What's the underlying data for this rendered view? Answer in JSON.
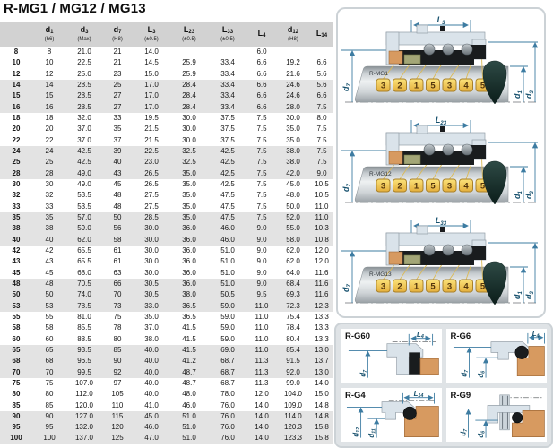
{
  "title": "R-MG1 / MG12 / MG13",
  "table": {
    "headers": [
      {
        "base": "",
        "sub": "",
        "tol": ""
      },
      {
        "base": "d",
        "sub": "1",
        "tol": "(h6)"
      },
      {
        "base": "d",
        "sub": "3",
        "tol": "(Max)"
      },
      {
        "base": "d",
        "sub": "7",
        "tol": "(H8)"
      },
      {
        "base": "L",
        "sub": "3",
        "tol": "(±0.5)"
      },
      {
        "base": "L",
        "sub": "23",
        "tol": "(±0.5)"
      },
      {
        "base": "L",
        "sub": "33",
        "tol": "(±0.5)"
      },
      {
        "base": "L",
        "sub": "4",
        "tol": ""
      },
      {
        "base": "d",
        "sub": "12",
        "tol": "(H8)"
      },
      {
        "base": "L",
        "sub": "14",
        "tol": ""
      }
    ],
    "rows": [
      [
        "8",
        "8",
        "21.0",
        "21",
        "14.0",
        "",
        "",
        "6.0",
        "",
        ""
      ],
      [
        "10",
        "10",
        "22.5",
        "21",
        "14.5",
        "25.9",
        "33.4",
        "6.6",
        "19.2",
        "6.6"
      ],
      [
        "12",
        "12",
        "25.0",
        "23",
        "15.0",
        "25.9",
        "33.4",
        "6.6",
        "21.6",
        "5.6"
      ],
      [
        "14",
        "14",
        "28.5",
        "25",
        "17.0",
        "28.4",
        "33.4",
        "6.6",
        "24.6",
        "5.6"
      ],
      [
        "15",
        "15",
        "28.5",
        "27",
        "17.0",
        "28.4",
        "33.4",
        "6.6",
        "24.6",
        "6.6"
      ],
      [
        "16",
        "16",
        "28.5",
        "27",
        "17.0",
        "28.4",
        "33.4",
        "6.6",
        "28.0",
        "7.5"
      ],
      [
        "18",
        "18",
        "32.0",
        "33",
        "19.5",
        "30.0",
        "37.5",
        "7.5",
        "30.0",
        "8.0"
      ],
      [
        "20",
        "20",
        "37.0",
        "35",
        "21.5",
        "30.0",
        "37.5",
        "7.5",
        "35.0",
        "7.5"
      ],
      [
        "22",
        "22",
        "37.0",
        "37",
        "21.5",
        "30.0",
        "37.5",
        "7.5",
        "35.0",
        "7.5"
      ],
      [
        "24",
        "24",
        "42.5",
        "39",
        "22.5",
        "32.5",
        "42.5",
        "7.5",
        "38.0",
        "7.5"
      ],
      [
        "25",
        "25",
        "42.5",
        "40",
        "23.0",
        "32.5",
        "42.5",
        "7.5",
        "38.0",
        "7.5"
      ],
      [
        "28",
        "28",
        "49.0",
        "43",
        "26.5",
        "35.0",
        "42.5",
        "7.5",
        "42.0",
        "9.0"
      ],
      [
        "30",
        "30",
        "49.0",
        "45",
        "26.5",
        "35.0",
        "42.5",
        "7.5",
        "45.0",
        "10.5"
      ],
      [
        "32",
        "32",
        "53.5",
        "48",
        "27.5",
        "35.0",
        "47.5",
        "7.5",
        "48.0",
        "10.5"
      ],
      [
        "33",
        "33",
        "53.5",
        "48",
        "27.5",
        "35.0",
        "47.5",
        "7.5",
        "50.0",
        "11.0"
      ],
      [
        "35",
        "35",
        "57.0",
        "50",
        "28.5",
        "35.0",
        "47.5",
        "7.5",
        "52.0",
        "11.0"
      ],
      [
        "38",
        "38",
        "59.0",
        "56",
        "30.0",
        "36.0",
        "46.0",
        "9.0",
        "55.0",
        "10.3"
      ],
      [
        "40",
        "40",
        "62.0",
        "58",
        "30.0",
        "36.0",
        "46.0",
        "9.0",
        "58.0",
        "10.8"
      ],
      [
        "42",
        "42",
        "65.5",
        "61",
        "30.0",
        "36.0",
        "51.0",
        "9.0",
        "62.0",
        "12.0"
      ],
      [
        "43",
        "43",
        "65.5",
        "61",
        "30.0",
        "36.0",
        "51.0",
        "9.0",
        "62.0",
        "12.0"
      ],
      [
        "45",
        "45",
        "68.0",
        "63",
        "30.0",
        "36.0",
        "51.0",
        "9.0",
        "64.0",
        "11.6"
      ],
      [
        "48",
        "48",
        "70.5",
        "66",
        "30.5",
        "36.0",
        "51.0",
        "9.0",
        "68.4",
        "11.6"
      ],
      [
        "50",
        "50",
        "74.0",
        "70",
        "30.5",
        "38.0",
        "50.5",
        "9.5",
        "69.3",
        "11.6"
      ],
      [
        "53",
        "53",
        "78.5",
        "73",
        "33.0",
        "36.5",
        "59.0",
        "11.0",
        "72.3",
        "12.3"
      ],
      [
        "55",
        "55",
        "81.0",
        "75",
        "35.0",
        "36.5",
        "59.0",
        "11.0",
        "75.4",
        "13.3"
      ],
      [
        "58",
        "58",
        "85.5",
        "78",
        "37.0",
        "41.5",
        "59.0",
        "11.0",
        "78.4",
        "13.3"
      ],
      [
        "60",
        "60",
        "88.5",
        "80",
        "38.0",
        "41.5",
        "59.0",
        "11.0",
        "80.4",
        "13.3"
      ],
      [
        "65",
        "65",
        "93.5",
        "85",
        "40.0",
        "41.5",
        "69.0",
        "11.0",
        "85.4",
        "13.0"
      ],
      [
        "68",
        "68",
        "96.5",
        "90",
        "40.0",
        "41.2",
        "68.7",
        "11.3",
        "91.5",
        "13.7"
      ],
      [
        "70",
        "70",
        "99.5",
        "92",
        "40.0",
        "48.7",
        "68.7",
        "11.3",
        "92.0",
        "13.0"
      ],
      [
        "75",
        "75",
        "107.0",
        "97",
        "40.0",
        "48.7",
        "68.7",
        "11.3",
        "99.0",
        "14.0"
      ],
      [
        "80",
        "80",
        "112.0",
        "105",
        "40.0",
        "48.0",
        "78.0",
        "12.0",
        "104.0",
        "15.0"
      ],
      [
        "85",
        "85",
        "120.0",
        "110",
        "41.0",
        "46.0",
        "76.0",
        "14.0",
        "109.0",
        "14.8"
      ],
      [
        "90",
        "90",
        "127.0",
        "115",
        "45.0",
        "51.0",
        "76.0",
        "14.0",
        "114.0",
        "14.8"
      ],
      [
        "95",
        "95",
        "132.0",
        "120",
        "46.0",
        "51.0",
        "76.0",
        "14.0",
        "120.3",
        "15.8"
      ],
      [
        "100",
        "100",
        "137.0",
        "125",
        "47.0",
        "51.0",
        "76.0",
        "14.0",
        "123.3",
        "15.8"
      ]
    ]
  },
  "diagrams": {
    "mg1": {
      "label": "R-MG1",
      "dim_top": {
        "base": "L",
        "sub": "3"
      },
      "dim_left": {
        "base": "d",
        "sub": "7"
      },
      "dim_r1": {
        "base": "d",
        "sub": "1"
      },
      "dim_r2": {
        "base": "d",
        "sub": "3"
      },
      "callouts": [
        "3",
        "2",
        "1",
        "5",
        "3",
        "4",
        "5"
      ]
    },
    "mg12": {
      "label": "R-MG12",
      "dim_top": {
        "base": "L",
        "sub": "23"
      },
      "dim_left": {
        "base": "d",
        "sub": "7"
      },
      "dim_r1": {
        "base": "d",
        "sub": "1"
      },
      "dim_r2": {
        "base": "d",
        "sub": "3"
      },
      "callouts": [
        "3",
        "2",
        "1",
        "5",
        "3",
        "4",
        "5"
      ]
    },
    "mg13": {
      "label": "R-MG13",
      "dim_top": {
        "base": "L",
        "sub": "33"
      },
      "dim_left": {
        "base": "d",
        "sub": "7"
      },
      "dim_r1": {
        "base": "d",
        "sub": "1"
      },
      "dim_r2": {
        "base": "d",
        "sub": "3"
      },
      "callouts": [
        "3",
        "2",
        "1",
        "5",
        "3",
        "4",
        "5"
      ]
    }
  },
  "seats": {
    "g60": {
      "label": "R-G60",
      "dim_h": {
        "base": "L",
        "sub": "4"
      },
      "dim_v1": {
        "base": "d",
        "sub": "7"
      }
    },
    "g6": {
      "label": "R-G6",
      "dim_h": {
        "base": "L",
        "sub": "4"
      },
      "dim_v1": {
        "base": "d",
        "sub": "7"
      },
      "dim_v2": {
        "base": "d",
        "sub": "6"
      }
    },
    "g4": {
      "label": "R-G4",
      "dim_h": {
        "base": "L",
        "sub": "14"
      },
      "dim_v1": {
        "base": "d",
        "sub": "12"
      },
      "dim_v2": {
        "base": "d",
        "sub": "11"
      }
    },
    "g9": {
      "label": "R-G9",
      "dim_v1": {
        "base": "d",
        "sub": "7"
      },
      "dim_v2": {
        "base": "d",
        "sub": "6"
      }
    }
  },
  "colors": {
    "header_bg": "#d2d2d2",
    "row_alt": "#e3e3e3",
    "callout_yellow": "#eebf4a",
    "copper": "#d79a60",
    "dim_blue": "#3d7ca2",
    "elastomer_black": "#191c1e",
    "drop_dark": "#12302c"
  }
}
